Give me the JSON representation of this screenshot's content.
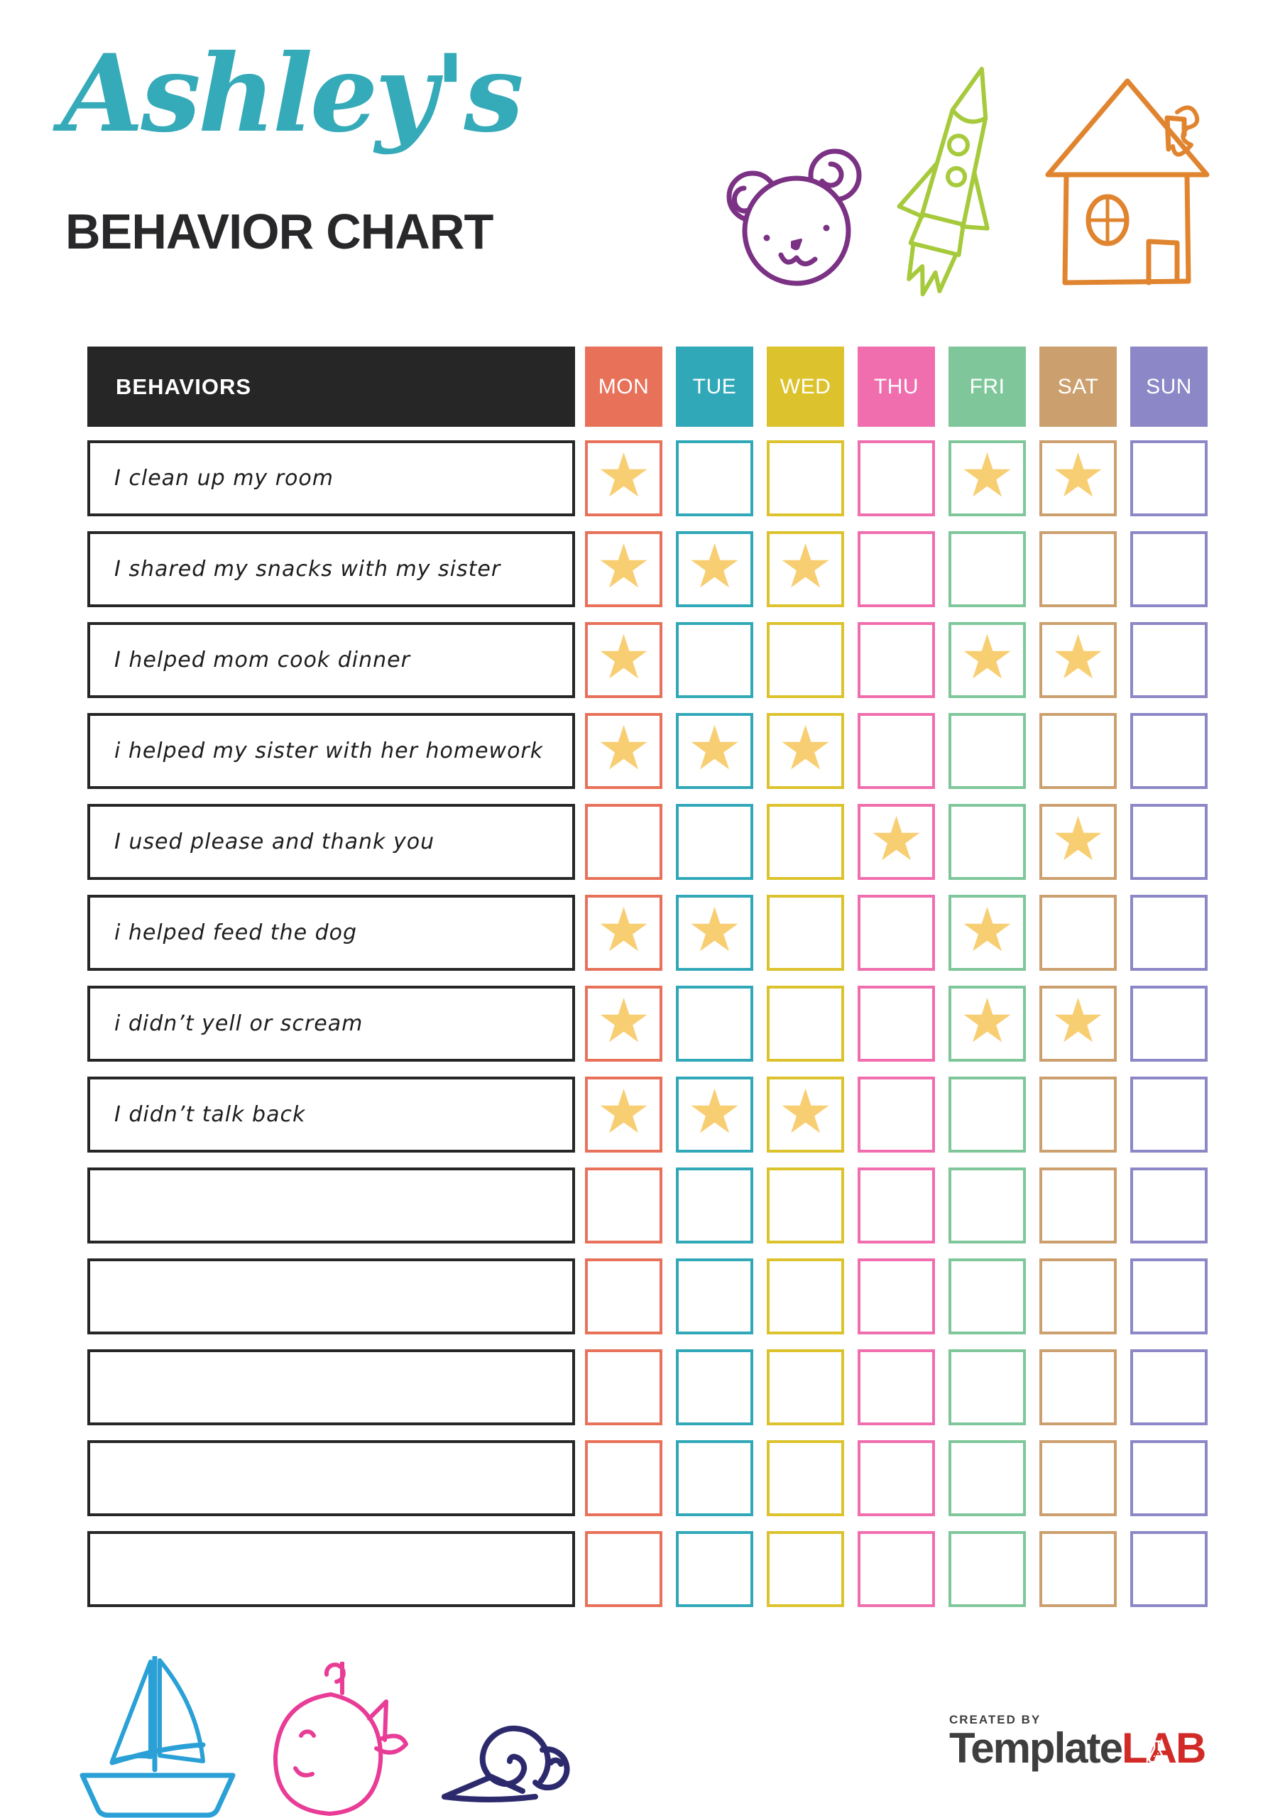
{
  "header": {
    "owner_name": "Ashley's",
    "title": "BEHAVIOR CHART"
  },
  "table": {
    "behaviors_header": "BEHAVIORS",
    "star_glyph": "★",
    "star_color": "#f8ce73",
    "header_bg": "#262626",
    "days": [
      {
        "label": "MON",
        "color": "#e8715a"
      },
      {
        "label": "TUE",
        "color": "#31a8b8"
      },
      {
        "label": "WED",
        "color": "#dcc32d"
      },
      {
        "label": "THU",
        "color": "#f06eae"
      },
      {
        "label": "FRI",
        "color": "#7fc79b"
      },
      {
        "label": "SAT",
        "color": "#cba06e"
      },
      {
        "label": "SUN",
        "color": "#8c87c6"
      }
    ],
    "rows": [
      {
        "label": "I clean up my room",
        "stars": [
          "MON",
          "FRI",
          "SAT"
        ]
      },
      {
        "label": "I shared my snacks with my sister",
        "stars": [
          "MON",
          "TUE",
          "WED"
        ]
      },
      {
        "label": "I helped mom cook dinner",
        "stars": [
          "MON",
          "FRI",
          "SAT"
        ]
      },
      {
        "label": "i helped my sister with her homework",
        "stars": [
          "MON",
          "TUE",
          "WED"
        ]
      },
      {
        "label": "I used please and thank you",
        "stars": [
          "THU",
          "SAT"
        ]
      },
      {
        "label": "i helped feed the dog",
        "stars": [
          "MON",
          "TUE",
          "FRI"
        ]
      },
      {
        "label": "i didn’t yell or scream",
        "stars": [
          "MON",
          "FRI",
          "SAT"
        ]
      },
      {
        "label": "I didn’t talk back",
        "stars": [
          "MON",
          "TUE",
          "WED"
        ]
      },
      {
        "label": "",
        "stars": []
      },
      {
        "label": "",
        "stars": []
      },
      {
        "label": "",
        "stars": []
      },
      {
        "label": "",
        "stars": []
      },
      {
        "label": "",
        "stars": []
      }
    ]
  },
  "doodles": {
    "bear_color": "#7b3184",
    "rocket_color": "#a6ca3c",
    "house_color": "#e0842f",
    "sailboat_color": "#2aa0d6",
    "whale_color": "#e83c96",
    "snail_color": "#2c2a6d"
  },
  "footer": {
    "created_by": "CREATED BY",
    "brand_part1": "Template",
    "brand_part2": "LAB",
    "brand_color1": "#3e3e3e",
    "brand_color2": "#d22b27"
  }
}
